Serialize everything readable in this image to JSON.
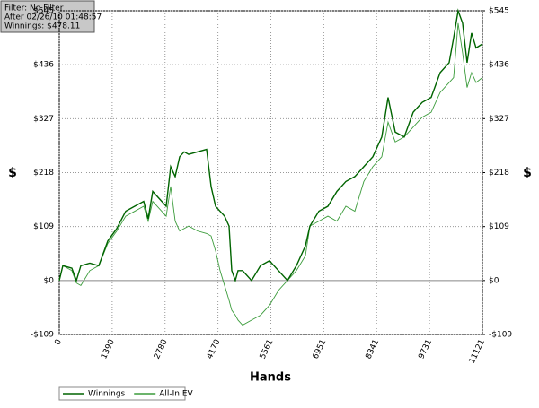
{
  "chart_data": {
    "type": "line",
    "annotations": [
      "Filter: No Filter",
      "After 02/26/10 01:48:57",
      "Winnings: $478.11"
    ],
    "xlabel": "Hands",
    "ylabel": "$",
    "y2label": "$",
    "x": [
      0,
      94,
      330,
      450,
      567,
      803,
      1039,
      1275,
      1511,
      1747,
      1983,
      2219,
      2337,
      2456,
      2574,
      2692,
      2810,
      2928,
      3046,
      3164,
      3282,
      3400,
      3636,
      3872,
      3990,
      4108,
      4226,
      4344,
      4462,
      4533,
      4627,
      4698,
      4817,
      5053,
      5289,
      5525,
      5761,
      5997,
      6233,
      6469,
      6587,
      6823,
      7060,
      7296,
      7532,
      7768,
      8004,
      8240,
      8476,
      8641,
      8830,
      9066,
      9302,
      9538,
      9774,
      10010,
      10246,
      10364,
      10482,
      10600,
      10718,
      10836,
      10954,
      11121
    ],
    "series": [
      {
        "name": "Winnings",
        "color": "#006400",
        "values": [
          0,
          30,
          25,
          0,
          30,
          35,
          30,
          80,
          105,
          140,
          150,
          160,
          125,
          180,
          170,
          160,
          150,
          230,
          210,
          250,
          260,
          255,
          260,
          265,
          190,
          150,
          140,
          130,
          110,
          20,
          0,
          20,
          20,
          0,
          30,
          40,
          20,
          0,
          30,
          70,
          110,
          140,
          150,
          180,
          200,
          210,
          230,
          250,
          290,
          370,
          300,
          290,
          340,
          360,
          370,
          420,
          440,
          490,
          545,
          520,
          440,
          500,
          470,
          478
        ]
      },
      {
        "name": "All-In EV",
        "color": "#3c9c3c",
        "values": [
          0,
          30,
          20,
          -5,
          -10,
          20,
          30,
          75,
          100,
          130,
          140,
          150,
          120,
          160,
          150,
          140,
          130,
          190,
          120,
          100,
          105,
          110,
          100,
          95,
          90,
          60,
          20,
          -10,
          -40,
          -60,
          -70,
          -80,
          -90,
          -80,
          -70,
          -50,
          -20,
          0,
          20,
          50,
          110,
          120,
          130,
          120,
          150,
          140,
          200,
          230,
          250,
          320,
          280,
          290,
          310,
          330,
          340,
          380,
          400,
          410,
          520,
          460,
          390,
          420,
          400,
          410
        ]
      }
    ],
    "xlim": [
      0,
      11121
    ],
    "xticks": [
      0,
      1390,
      2780,
      4170,
      5561,
      6951,
      8341,
      9731,
      11121
    ],
    "ylim": [
      -109,
      545
    ],
    "yticks": [
      {
        "value": -109,
        "label": "-$109"
      },
      {
        "value": 0,
        "label": "$0"
      },
      {
        "value": 109,
        "label": "$109"
      },
      {
        "value": 218,
        "label": "$218"
      },
      {
        "value": 327,
        "label": "$327"
      },
      {
        "value": 436,
        "label": "$436"
      },
      {
        "value": 545,
        "label": "$545"
      }
    ],
    "y2lim": [
      -109,
      545
    ],
    "y2ticks": [
      {
        "value": -109,
        "label": "-$109"
      },
      {
        "value": 0,
        "label": "$0"
      },
      {
        "value": 109,
        "label": "$109"
      },
      {
        "value": 218,
        "label": "$218"
      },
      {
        "value": 327,
        "label": "$327"
      },
      {
        "value": 436,
        "label": "$436"
      },
      {
        "value": 545,
        "label": "$545"
      }
    ],
    "grid": true,
    "legend": "bottom-left"
  }
}
